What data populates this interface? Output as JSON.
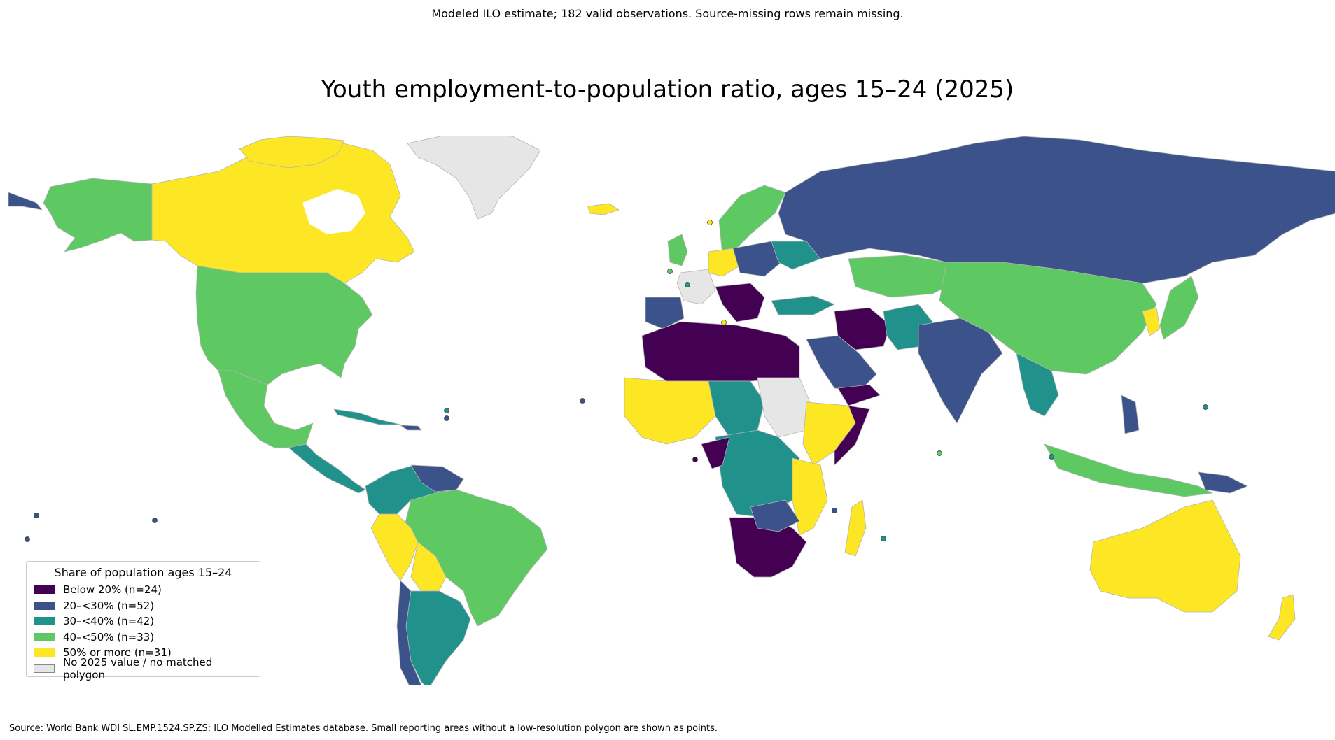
{
  "subtitle": "Modeled ILO estimate; 182 valid observations. Source-missing rows remain missing.",
  "title": "Youth employment-to-population ratio, ages 15–24 (2025)",
  "source": "Source: World Bank WDI SL.EMP.1524.SP.ZS; ILO Modelled Estimates database. Small reporting areas without a low-resolution polygon are shown as points.",
  "colors": {
    "c1": "#440154",
    "c2": "#3b528b",
    "c3": "#21918c",
    "c4": "#5ec962",
    "c5": "#fde725",
    "nodata": "#e6e6e6",
    "border": "#b4b4b4"
  },
  "legend": {
    "title": "Share of population ages 15–24",
    "items": [
      {
        "label": "Below 20%  (n=24)",
        "color": "#440154"
      },
      {
        "label": "20–<30%  (n=52)",
        "color": "#3b528b"
      },
      {
        "label": "30–<40%  (n=42)",
        "color": "#21918c"
      },
      {
        "label": "40–<50%  (n=33)",
        "color": "#5ec962"
      },
      {
        "label": "50% or more  (n=31)",
        "color": "#fde725"
      },
      {
        "label": "No 2025 value / no matched polygon",
        "color": "#e6e6e6"
      }
    ]
  }
}
